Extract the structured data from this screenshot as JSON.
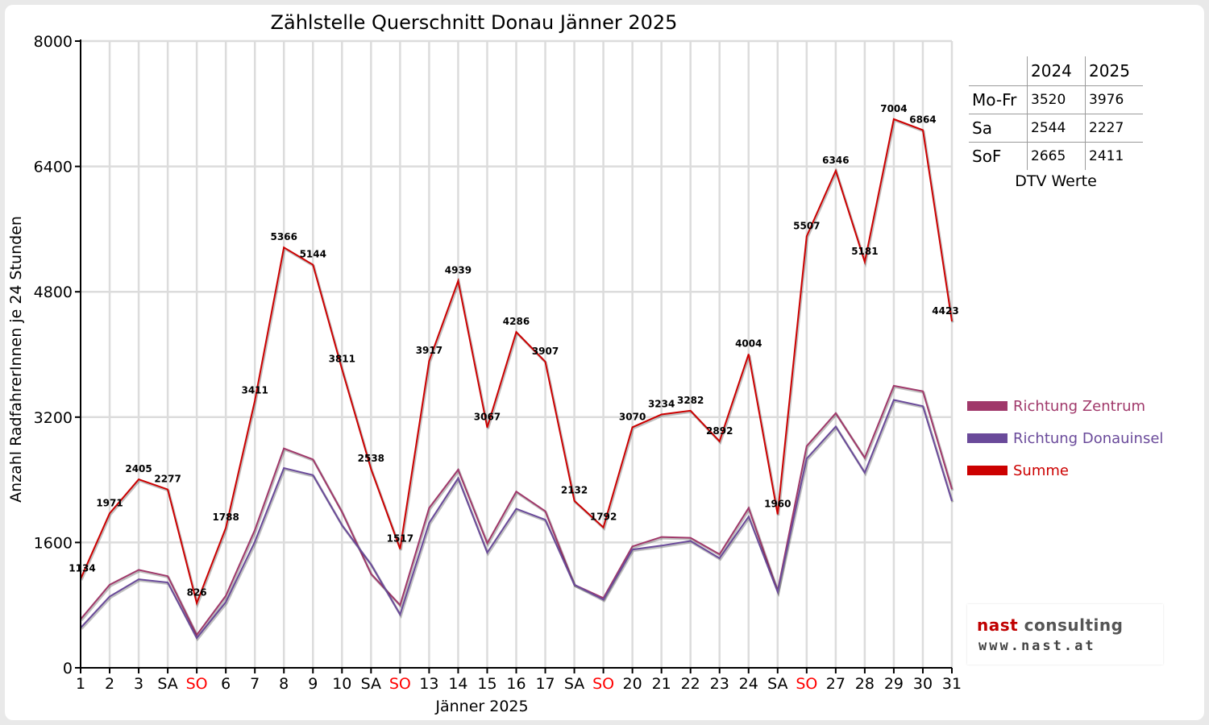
{
  "chart_data": {
    "type": "line",
    "title": "Zählstelle Querschnitt Donau Jänner 2025",
    "xlabel": "Jänner 2025",
    "ylabel": "Anzahl RadfahrerInnen je 24 Stunden",
    "ylim": [
      0,
      8000
    ],
    "yticks": [
      "0",
      "1600",
      "3200",
      "4800",
      "6400",
      "8000"
    ],
    "grid": true,
    "legend_position": "right",
    "categories": [
      "1",
      "2",
      "3",
      "SA",
      "SO",
      "6",
      "7",
      "8",
      "9",
      "10",
      "SA",
      "SO",
      "13",
      "14",
      "15",
      "16",
      "17",
      "SA",
      "SO",
      "20",
      "21",
      "22",
      "23",
      "24",
      "SA",
      "SO",
      "27",
      "28",
      "29",
      "30",
      "31"
    ],
    "weekend_categories": [
      "SO"
    ],
    "series": [
      {
        "name": "Richtung Zentrum",
        "color": "#a0386a",
        "values": [
          620,
          1060,
          1250,
          1170,
          420,
          920,
          1760,
          2800,
          2660,
          1990,
          1200,
          800,
          2040,
          2530,
          1590,
          2250,
          2000,
          1060,
          890,
          1550,
          1670,
          1660,
          1450,
          2040,
          980,
          2830,
          3250,
          2680,
          3600,
          3530,
          2280
        ]
      },
      {
        "name": "Richtung Donauinsel",
        "color": "#6a4a9a",
        "values": [
          510,
          910,
          1130,
          1090,
          380,
          840,
          1610,
          2550,
          2460,
          1820,
          1320,
          680,
          1850,
          2420,
          1470,
          2030,
          1890,
          1060,
          870,
          1510,
          1560,
          1620,
          1400,
          1930,
          970,
          2670,
          3080,
          2490,
          3420,
          3340,
          2130
        ]
      },
      {
        "name": "Summe",
        "color": "#cc0000",
        "values": [
          1134,
          1971,
          2405,
          2277,
          826,
          1788,
          3411,
          5366,
          5144,
          3811,
          2538,
          1517,
          3917,
          4939,
          3067,
          4286,
          3907,
          2132,
          1792,
          3070,
          3234,
          3282,
          2892,
          4004,
          1960,
          5507,
          6346,
          5181,
          7004,
          6864,
          4423
        ]
      }
    ],
    "data_labels": [
      "1134",
      "1971",
      "2405",
      "2277",
      "826",
      "1788",
      "3411",
      "5366",
      "5144",
      "3811",
      "2538",
      "1517",
      "3917",
      "4939",
      "3067",
      "4286",
      "3907",
      "2132",
      "1792",
      "3070",
      "3234",
      "3282",
      "2892",
      "4004",
      "1960",
      "5507",
      "6346",
      "5181",
      "7004",
      "6864",
      "4423"
    ]
  },
  "dtv_table": {
    "headers": [
      "2024",
      "2025"
    ],
    "rows": [
      {
        "label": "Mo-Fr",
        "v2024": "3520",
        "v2025": "3976"
      },
      {
        "label": "Sa",
        "v2024": "2544",
        "v2025": "2227"
      },
      {
        "label": "SoF",
        "v2024": "2665",
        "v2025": "2411"
      }
    ],
    "caption": "DTV Werte"
  },
  "logo": {
    "part1": "nast",
    "part2": " consulting",
    "url": "www.nast.at"
  }
}
